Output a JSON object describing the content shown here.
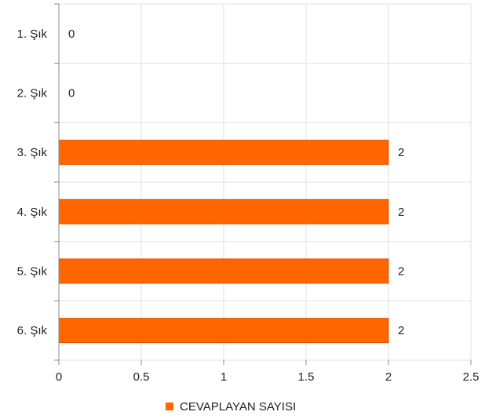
{
  "chart_data": {
    "type": "bar",
    "orientation": "horizontal",
    "categories": [
      "1. Şık",
      "2. Şık",
      "3. Şık",
      "4. Şık",
      "5. Şık",
      "6. Şık"
    ],
    "series": [
      {
        "name": "CEVAPLAYAN SAYISI",
        "values": [
          0,
          0,
          2,
          2,
          2,
          2
        ],
        "color": "#ff6600"
      }
    ],
    "data_labels": [
      "0",
      "0",
      "2",
      "2",
      "2",
      "2"
    ],
    "x_ticks": [
      "0",
      "0.5",
      "1",
      "1.5",
      "2",
      "2.5"
    ],
    "xlim": [
      0,
      2.5
    ],
    "grid": true,
    "legend_position": "bottom",
    "title": "",
    "xlabel": "",
    "ylabel": ""
  }
}
